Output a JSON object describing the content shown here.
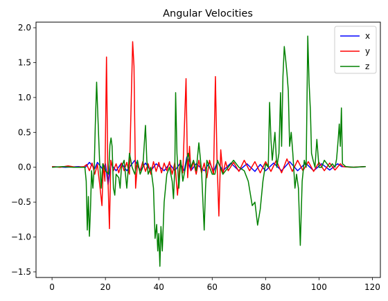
{
  "chart_data": {
    "type": "line",
    "title": "Angular Velocities",
    "xlabel": "",
    "ylabel": "",
    "xlim": [
      -6,
      123
    ],
    "ylim": [
      -1.58,
      2.08
    ],
    "xticks": [
      0,
      20,
      40,
      60,
      80,
      100,
      120
    ],
    "yticks": [
      -1.5,
      -1.0,
      -0.5,
      0.0,
      0.5,
      1.0,
      1.5,
      2.0
    ],
    "xtick_labels": [
      "0",
      "20",
      "40",
      "60",
      "80",
      "100",
      "120"
    ],
    "ytick_labels": [
      "−1.5",
      "−1.0",
      "−0.5",
      "0.0",
      "0.5",
      "1.0",
      "1.5",
      "2.0"
    ],
    "grid": false,
    "legend_position": "top-right",
    "series": [
      {
        "name": "x",
        "color": "#0000ff",
        "points": [
          [
            0,
            0.01
          ],
          [
            5,
            0.0
          ],
          [
            10,
            0.01
          ],
          [
            12.5,
            0.0
          ],
          [
            14,
            0.07
          ],
          [
            16,
            -0.02
          ],
          [
            17,
            0.07
          ],
          [
            19,
            -0.03
          ],
          [
            20,
            0.05
          ],
          [
            21,
            -0.25
          ],
          [
            22,
            0.05
          ],
          [
            24,
            -0.05
          ],
          [
            26,
            0.06
          ],
          [
            28,
            -0.05
          ],
          [
            30,
            0.05
          ],
          [
            31,
            0.1
          ],
          [
            33,
            -0.05
          ],
          [
            35,
            0.06
          ],
          [
            37,
            -0.05
          ],
          [
            39,
            0.05
          ],
          [
            42,
            -0.05
          ],
          [
            44,
            0.05
          ],
          [
            46,
            -0.05
          ],
          [
            48,
            0.06
          ],
          [
            49.5,
            -0.05
          ],
          [
            50.5,
            0.15
          ],
          [
            52,
            -0.05
          ],
          [
            54,
            0.05
          ],
          [
            57,
            -0.05
          ],
          [
            59,
            0.07
          ],
          [
            60.5,
            -0.06
          ],
          [
            62,
            0.08
          ],
          [
            64,
            -0.05
          ],
          [
            67,
            0.06
          ],
          [
            70,
            -0.05
          ],
          [
            73,
            0.05
          ],
          [
            76,
            -0.06
          ],
          [
            78,
            0.04
          ],
          [
            80,
            -0.05
          ],
          [
            83,
            0.06
          ],
          [
            86,
            -0.05
          ],
          [
            89,
            0.08
          ],
          [
            92,
            -0.05
          ],
          [
            95,
            0.06
          ],
          [
            98,
            -0.05
          ],
          [
            101,
            0.05
          ],
          [
            104,
            -0.04
          ],
          [
            107,
            0.05
          ],
          [
            108.5,
            0.01
          ],
          [
            113,
            0.0
          ],
          [
            117.5,
            0.01
          ]
        ]
      },
      {
        "name": "y",
        "color": "#ff0000",
        "points": [
          [
            0,
            0.01
          ],
          [
            3,
            0.0
          ],
          [
            6,
            0.02
          ],
          [
            9,
            0.0
          ],
          [
            12,
            0.01
          ],
          [
            13,
            0.04
          ],
          [
            14,
            -0.05
          ],
          [
            15,
            0.06
          ],
          [
            16,
            -0.1
          ],
          [
            17,
            0.04
          ],
          [
            18,
            -0.3
          ],
          [
            18.7,
            -0.55
          ],
          [
            19.2,
            0.05
          ],
          [
            19.8,
            -0.2
          ],
          [
            20.4,
            1.58
          ],
          [
            20.9,
            -0.1
          ],
          [
            21.5,
            -0.88
          ],
          [
            22,
            0.1
          ],
          [
            23,
            -0.05
          ],
          [
            24,
            0.05
          ],
          [
            25,
            -0.08
          ],
          [
            26,
            0.06
          ],
          [
            27,
            -0.05
          ],
          [
            28,
            0.07
          ],
          [
            29,
            -0.1
          ],
          [
            30.2,
            1.8
          ],
          [
            30.7,
            1.45
          ],
          [
            31.3,
            -0.3
          ],
          [
            32,
            0.05
          ],
          [
            33,
            -0.05
          ],
          [
            34,
            0.08
          ],
          [
            35,
            -0.06
          ],
          [
            36,
            0.05
          ],
          [
            37,
            -0.1
          ],
          [
            38,
            0.08
          ],
          [
            39,
            -0.06
          ],
          [
            40,
            0.07
          ],
          [
            41,
            -0.08
          ],
          [
            42,
            0.06
          ],
          [
            43,
            -0.05
          ],
          [
            44,
            0.08
          ],
          [
            45,
            -0.1
          ],
          [
            46,
            0.07
          ],
          [
            47,
            -0.4
          ],
          [
            48,
            0.1
          ],
          [
            49,
            -0.08
          ],
          [
            50.2,
            1.27
          ],
          [
            50.8,
            -0.15
          ],
          [
            51.5,
            0.3
          ],
          [
            52,
            -0.05
          ],
          [
            53,
            0.08
          ],
          [
            54,
            -0.1
          ],
          [
            55,
            0.1
          ],
          [
            56,
            -0.08
          ],
          [
            57,
            0.06
          ],
          [
            58,
            -0.15
          ],
          [
            59,
            0.1
          ],
          [
            60.5,
            -0.1
          ],
          [
            61.2,
            1.3
          ],
          [
            61.8,
            0.1
          ],
          [
            62.5,
            -0.7
          ],
          [
            63.2,
            0.25
          ],
          [
            64,
            -0.1
          ],
          [
            65,
            0.08
          ],
          [
            66,
            -0.05
          ],
          [
            68,
            0.07
          ],
          [
            70,
            -0.06
          ],
          [
            72,
            0.1
          ],
          [
            74,
            -0.05
          ],
          [
            76,
            0.08
          ],
          [
            78,
            -0.08
          ],
          [
            80,
            0.08
          ],
          [
            82,
            -0.06
          ],
          [
            84,
            0.1
          ],
          [
            86,
            -0.08
          ],
          [
            88,
            0.12
          ],
          [
            90,
            -0.06
          ],
          [
            92,
            0.1
          ],
          [
            94,
            -0.05
          ],
          [
            96,
            0.08
          ],
          [
            98,
            -0.06
          ],
          [
            100,
            0.07
          ],
          [
            102,
            -0.05
          ],
          [
            104,
            0.06
          ],
          [
            106,
            -0.04
          ],
          [
            108,
            0.05
          ],
          [
            109,
            0.01
          ],
          [
            112,
            0.0
          ],
          [
            117.5,
            0.01
          ]
        ]
      },
      {
        "name": "z",
        "color": "#008000",
        "points": [
          [
            0,
            0.0
          ],
          [
            4,
            0.01
          ],
          [
            8,
            0.0
          ],
          [
            12.3,
            0.0
          ],
          [
            12.8,
            -0.2
          ],
          [
            13.2,
            -0.9
          ],
          [
            13.6,
            -0.42
          ],
          [
            14,
            -0.99
          ],
          [
            14.4,
            -0.6
          ],
          [
            14.8,
            -0.05
          ],
          [
            15.3,
            -0.3
          ],
          [
            15.8,
            -0.01
          ],
          [
            16.2,
            0.6
          ],
          [
            16.7,
            1.22
          ],
          [
            17.2,
            0.7
          ],
          [
            17.8,
            0.1
          ],
          [
            18.4,
            -0.3
          ],
          [
            19,
            0.05
          ],
          [
            20,
            -0.05
          ],
          [
            21.2,
            -0.1
          ],
          [
            21.7,
            0.32
          ],
          [
            22.1,
            0.42
          ],
          [
            22.5,
            0.3
          ],
          [
            23,
            -0.3
          ],
          [
            23.5,
            -0.4
          ],
          [
            24,
            -0.1
          ],
          [
            25,
            -0.15
          ],
          [
            25.5,
            -0.3
          ],
          [
            26,
            0.0
          ],
          [
            27,
            0.1
          ],
          [
            28,
            -0.3
          ],
          [
            29,
            0.2
          ],
          [
            30,
            0.0
          ],
          [
            31,
            -0.1
          ],
          [
            32,
            0.1
          ],
          [
            33,
            -0.1
          ],
          [
            34,
            0.0
          ],
          [
            35,
            0.6
          ],
          [
            35.5,
            0.1
          ],
          [
            36,
            -0.1
          ],
          [
            37,
            0.0
          ],
          [
            38,
            -0.3
          ],
          [
            38.6,
            -1.02
          ],
          [
            39.2,
            -0.82
          ],
          [
            39.6,
            -1.2
          ],
          [
            40,
            -0.95
          ],
          [
            40.4,
            -1.42
          ],
          [
            40.8,
            -0.85
          ],
          [
            41.3,
            -1.2
          ],
          [
            42,
            -0.5
          ],
          [
            43,
            -0.1
          ],
          [
            44,
            0.0
          ],
          [
            45,
            -0.2
          ],
          [
            45.5,
            -0.45
          ],
          [
            46,
            0.0
          ],
          [
            46.3,
            1.07
          ],
          [
            46.8,
            0.2
          ],
          [
            47.5,
            -0.3
          ],
          [
            48.2,
            0.1
          ],
          [
            49,
            -0.2
          ],
          [
            50,
            0.0
          ],
          [
            51,
            0.2
          ],
          [
            52,
            0.0
          ],
          [
            53,
            0.1
          ],
          [
            54,
            -0.05
          ],
          [
            55,
            0.35
          ],
          [
            56,
            -0.05
          ],
          [
            57,
            -0.9
          ],
          [
            57.5,
            -0.3
          ],
          [
            58,
            0.1
          ],
          [
            59,
            0.0
          ],
          [
            60,
            -0.1
          ],
          [
            61,
            -0.1
          ],
          [
            62,
            0.1
          ],
          [
            63,
            0.0
          ],
          [
            64,
            -0.1
          ],
          [
            66,
            0.0
          ],
          [
            68,
            0.1
          ],
          [
            70,
            0.0
          ],
          [
            72,
            -0.05
          ],
          [
            73.5,
            -0.2
          ],
          [
            75,
            -0.55
          ],
          [
            76,
            -0.5
          ],
          [
            77,
            -0.83
          ],
          [
            78,
            -0.6
          ],
          [
            79,
            -0.2
          ],
          [
            80,
            0.05
          ],
          [
            81,
            0.0
          ],
          [
            81.5,
            0.93
          ],
          [
            82,
            0.4
          ],
          [
            82.5,
            0.1
          ],
          [
            83.5,
            0.5
          ],
          [
            84.2,
            0.0
          ],
          [
            85,
            0.2
          ],
          [
            85.6,
            1.07
          ],
          [
            86,
            0.3
          ],
          [
            86.5,
            1.3
          ],
          [
            87,
            1.73
          ],
          [
            87.5,
            1.55
          ],
          [
            88,
            1.35
          ],
          [
            88.5,
            1.1
          ],
          [
            89,
            0.3
          ],
          [
            89.6,
            0.5
          ],
          [
            90.2,
            0.2
          ],
          [
            91,
            -0.3
          ],
          [
            91.6,
            -0.1
          ],
          [
            92.3,
            -0.3
          ],
          [
            93,
            -1.12
          ],
          [
            93.7,
            -0.2
          ],
          [
            94.5,
            0.1
          ],
          [
            95.2,
            0.0
          ],
          [
            95.8,
            1.88
          ],
          [
            96.3,
            1.2
          ],
          [
            96.8,
            0.8
          ],
          [
            97.2,
            0.2
          ],
          [
            97.8,
            0.1
          ],
          [
            98.5,
            0.0
          ],
          [
            99.2,
            0.4
          ],
          [
            100,
            0.0
          ],
          [
            101,
            0.0
          ],
          [
            102,
            0.1
          ],
          [
            103,
            0.05
          ],
          [
            104,
            0.0
          ],
          [
            105,
            0.05
          ],
          [
            106,
            0.0
          ],
          [
            106.6,
            0.12
          ],
          [
            107.2,
            0.4
          ],
          [
            107.6,
            0.62
          ],
          [
            108,
            0.3
          ],
          [
            108.4,
            0.85
          ],
          [
            108.8,
            0.05
          ],
          [
            110,
            0.01
          ],
          [
            113,
            0.0
          ],
          [
            117.5,
            0.01
          ]
        ]
      }
    ]
  }
}
